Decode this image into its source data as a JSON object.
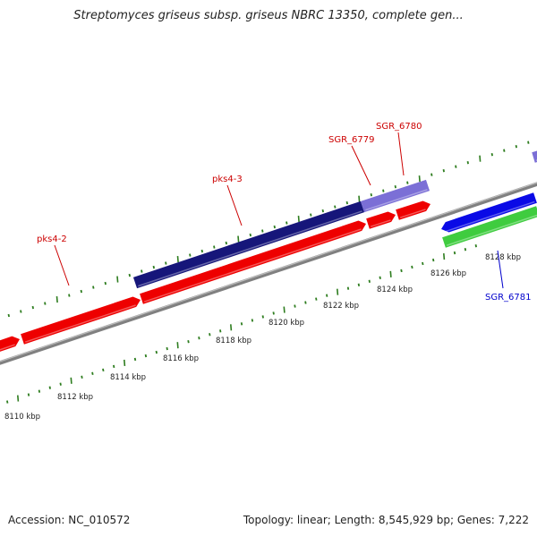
{
  "title": "Streptomyces griseus subsp. griseus NBRC 13350, complete gen...",
  "footer": {
    "accession": "Accession: NC_010572",
    "summary": "Topology: linear; Length: 8,545,929 bp; Genes: 7,222"
  },
  "colors": {
    "background": "#ffffff",
    "tick": "#2e7d1f",
    "backbone": "#808080",
    "red_gene": "#ee0000",
    "navy_gene": "#16167a",
    "lavender_gene": "#7b6fd6",
    "blue_gene": "#0a0ae6",
    "green_gene": "#3fcc3f",
    "label_red": "#cc0000",
    "label_blue": "#0000cc"
  },
  "scale_labels": [
    "8110 kbp",
    "8112 kbp",
    "8114 kbp",
    "8116 kbp",
    "8118 kbp",
    "8120 kbp",
    "8122 kbp",
    "8124 kbp",
    "8126 kbp",
    "8128 kbp"
  ],
  "gene_labels": [
    {
      "name": "pks4-2",
      "color": "label_red"
    },
    {
      "name": "pks4-3",
      "color": "label_red"
    },
    {
      "name": "SGR_6779",
      "color": "label_red"
    },
    {
      "name": "SGR_6780",
      "color": "label_red"
    },
    {
      "name": "SGR_6781",
      "color": "label_blue"
    }
  ]
}
